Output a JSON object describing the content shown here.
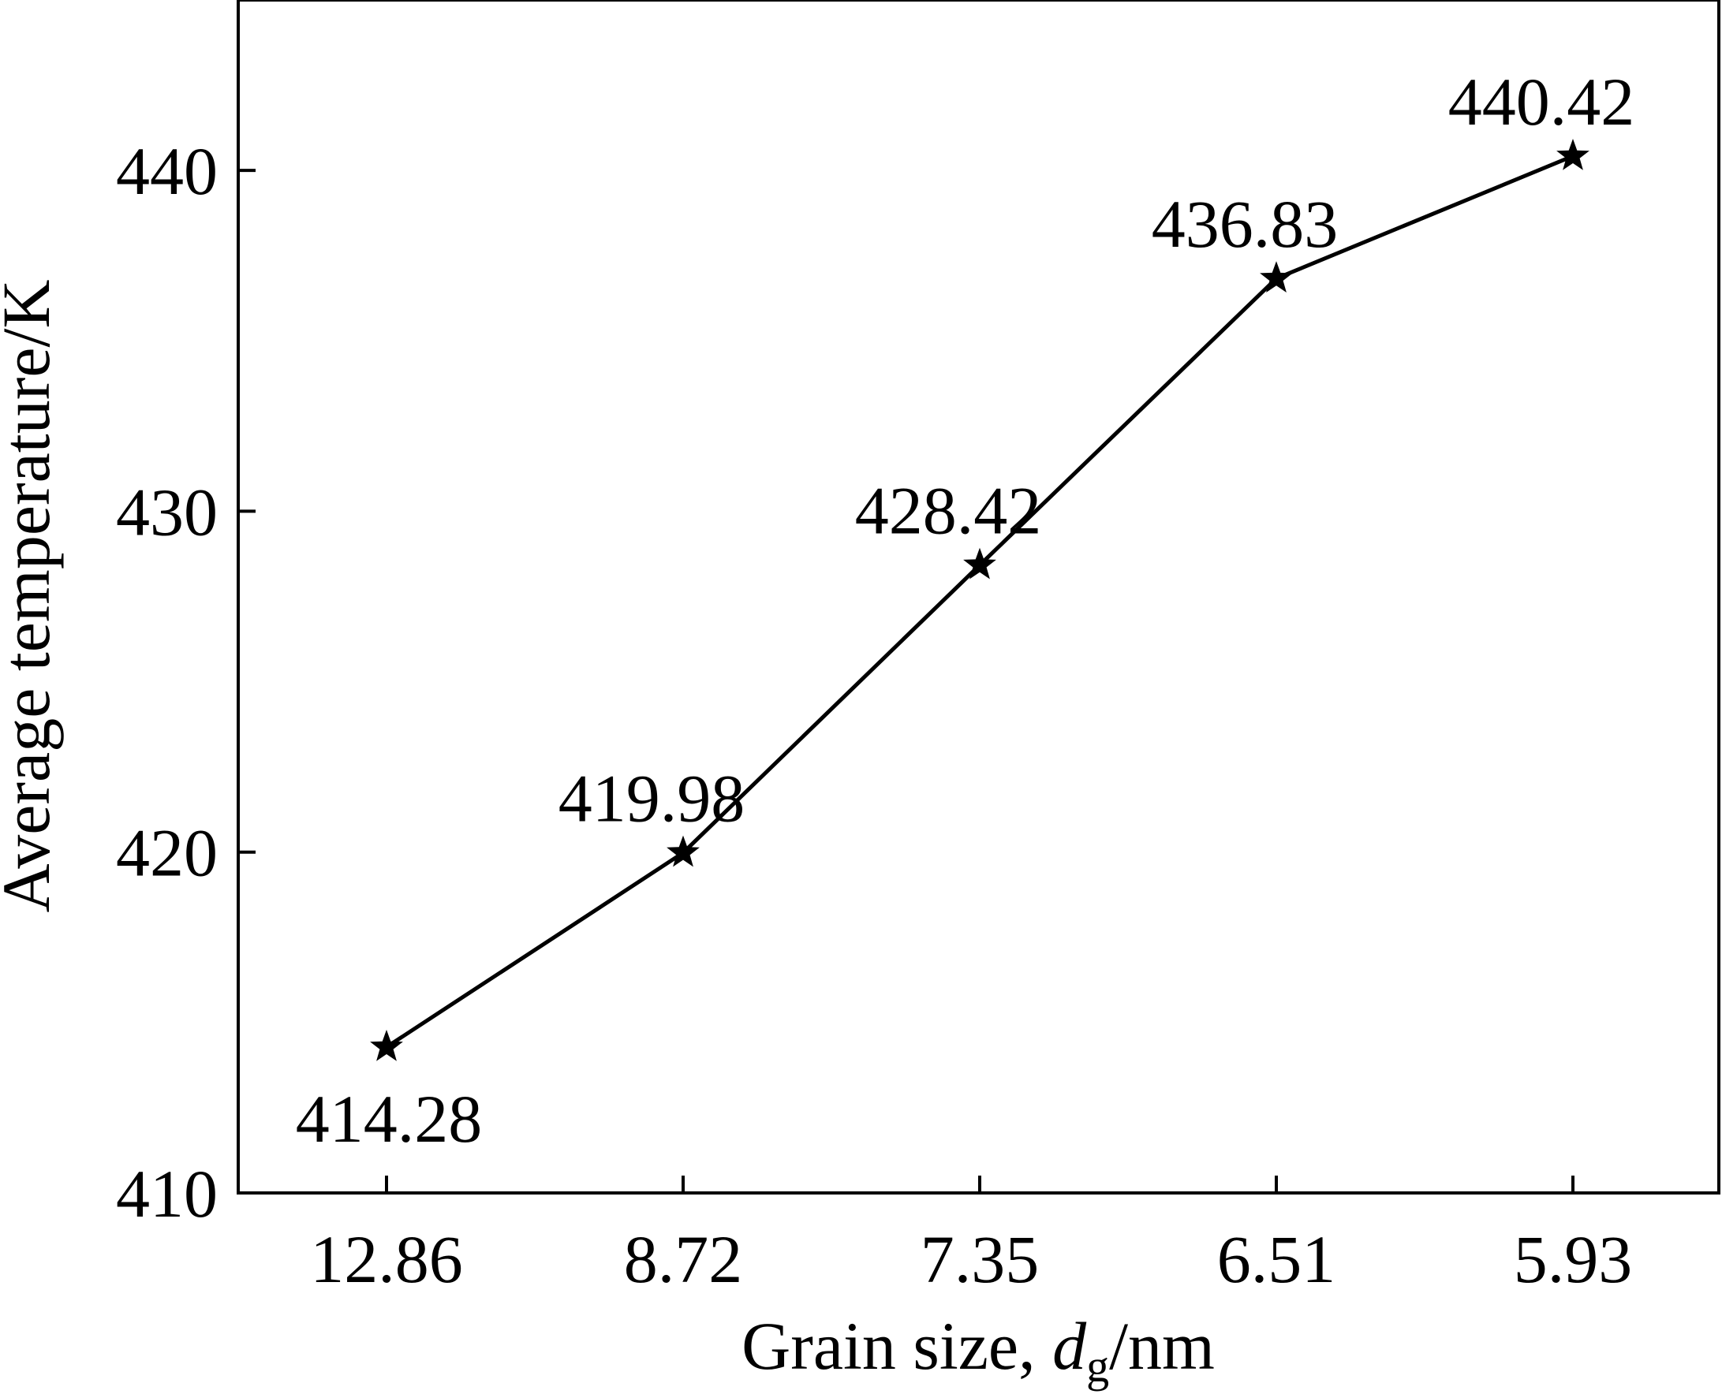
{
  "chart_data": {
    "type": "line",
    "title": "",
    "xlabel_prefix": "Grain size, ",
    "xlabel_var": "d",
    "xlabel_sub": "g",
    "xlabel_suffix": "/nm",
    "ylabel": "Average temperature/K",
    "categories": [
      "12.86",
      "8.72",
      "7.35",
      "6.51",
      "5.93"
    ],
    "series": [
      {
        "values": [
          414.28,
          419.98,
          428.42,
          436.83,
          440.42
        ],
        "labels": [
          "414.28",
          "419.98",
          "428.42",
          "436.83",
          "440.42"
        ],
        "marker": "star"
      }
    ],
    "yticks": [
      410,
      420,
      430,
      440
    ],
    "ylim": [
      410,
      445
    ],
    "grid": false,
    "legend": "none"
  }
}
